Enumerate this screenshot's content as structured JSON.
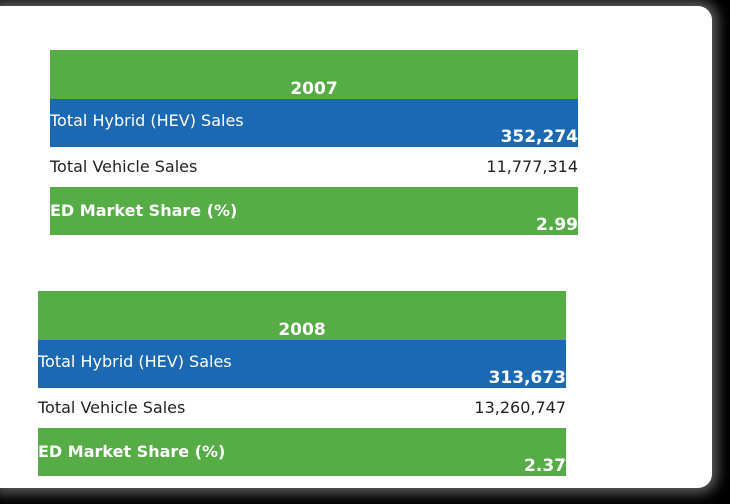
{
  "tables": [
    {
      "year": "2007",
      "rows": [
        [
          "Total Hybrid (HEV) Sales",
          "352,274"
        ],
        [
          "Total Vehicle Sales",
          "11,777,314"
        ],
        [
          "ED Market Share (%)",
          "2.99"
        ]
      ]
    },
    {
      "year": "2008",
      "rows": [
        [
          "Total Hybrid (HEV) Sales",
          "313,673"
        ],
        [
          "Total Vehicle Sales",
          "13,260,747"
        ],
        [
          "ED Market Share (%)",
          "2.37"
        ]
      ]
    }
  ]
}
